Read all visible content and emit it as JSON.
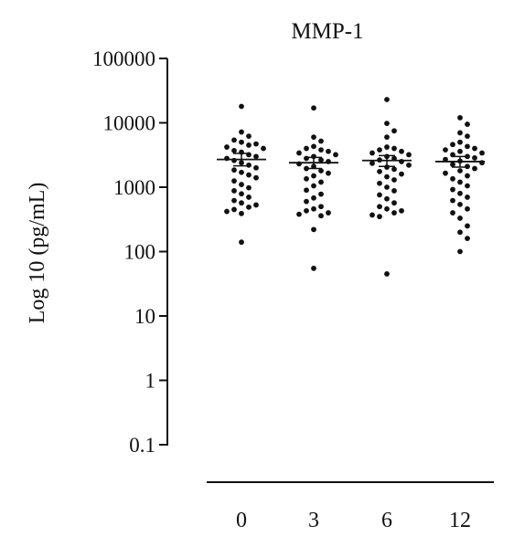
{
  "chart_data": {
    "type": "scatter",
    "title": "MMP-1",
    "ylabel": "Log 10 (pg/mL)",
    "xlabel": "",
    "y_scale": "log",
    "ylim": [
      0.1,
      100000
    ],
    "y_ticks": [
      {
        "value": 0.1,
        "label": "0.1"
      },
      {
        "value": 1,
        "label": "1"
      },
      {
        "value": 10,
        "label": "10"
      },
      {
        "value": 100,
        "label": "100"
      },
      {
        "value": 1000,
        "label": "1000"
      },
      {
        "value": 10000,
        "label": "10000"
      },
      {
        "value": 100000,
        "label": "100000"
      }
    ],
    "categories": [
      "0",
      "3",
      "6",
      "12"
    ],
    "marker_color": "#111111",
    "groups": [
      {
        "category": "0",
        "mean": 2700,
        "sem_low": 2150,
        "sem_high": 3350,
        "points": [
          18000,
          7200,
          6200,
          5400,
          5000,
          4700,
          4500,
          4200,
          4000,
          3700,
          3500,
          3200,
          3000,
          2800,
          2600,
          2400,
          2200,
          2000,
          1850,
          1700,
          1550,
          1400,
          1250,
          1100,
          980,
          880,
          790,
          700,
          620,
          570,
          530,
          490,
          450,
          420,
          390,
          140
        ]
      },
      {
        "category": "3",
        "mean": 2400,
        "sem_low": 1950,
        "sem_high": 2900,
        "points": [
          17000,
          6000,
          5200,
          4300,
          4000,
          3800,
          3600,
          3400,
          3200,
          3000,
          2800,
          2650,
          2500,
          2300,
          2100,
          1950,
          1800,
          1650,
          1500,
          1350,
          1200,
          1050,
          900,
          780,
          680,
          600,
          500,
          460,
          430,
          400,
          380,
          360,
          220,
          55
        ]
      },
      {
        "category": "6",
        "mean": 2600,
        "sem_low": 2100,
        "sem_high": 3100,
        "points": [
          23000,
          9800,
          7500,
          6000,
          4200,
          4000,
          3800,
          3600,
          3400,
          3200,
          3000,
          2800,
          2650,
          2500,
          2350,
          2200,
          2050,
          1900,
          1750,
          1600,
          1450,
          1300,
          1150,
          1000,
          880,
          760,
          660,
          570,
          500,
          460,
          430,
          400,
          370,
          350,
          45
        ]
      },
      {
        "category": "12",
        "mean": 2500,
        "sem_low": 2050,
        "sem_high": 3000,
        "points": [
          12000,
          9500,
          7000,
          6200,
          5000,
          4600,
          4300,
          4000,
          3800,
          3600,
          3400,
          3200,
          3000,
          2850,
          2700,
          2550,
          2400,
          2250,
          2100,
          1950,
          1800,
          1650,
          1500,
          1350,
          1200,
          1050,
          920,
          800,
          700,
          620,
          540,
          460,
          400,
          330,
          250,
          200,
          160,
          100
        ]
      }
    ]
  }
}
